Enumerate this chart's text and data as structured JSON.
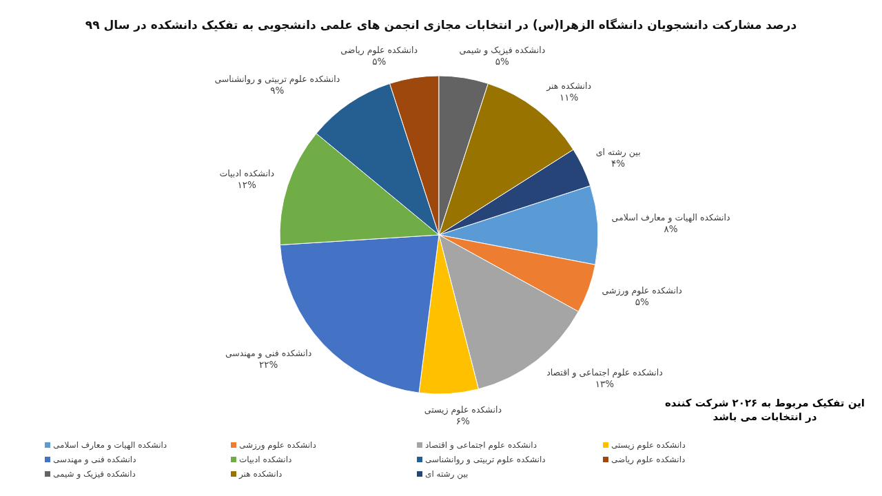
{
  "chart_data": {
    "type": "pie",
    "title": "درصد مشارکت دانشجویان دانشگاه الزهرا(س) در انتخابات مجازی انجمن های علمی دانشجویی به تفکیک دانشکده در سال ۹۹",
    "categories": [
      "دانشکده الهیات و معارف اسلامی",
      "دانشکده علوم ورزشی",
      "دانشکده علوم اجتماعی و اقتصاد",
      "دانشکده علوم زیستی",
      "دانشکده فنی و مهندسی",
      "دانشکده ادبیات",
      "دانشکده علوم تربیتی و روانشناسی",
      "دانشکده علوم ریاضی",
      "دانشکده فیزیک و شیمی",
      "دانشکده هنر",
      "بین رشته ای"
    ],
    "values": [
      8,
      5,
      13,
      6,
      22,
      12,
      9,
      5,
      5,
      11,
      4
    ],
    "value_labels": [
      "۸%",
      "۵%",
      "۱۳%",
      "۶%",
      "۲۲%",
      "۱۲%",
      "۹%",
      "۵%",
      "۵%",
      "۱۱%",
      "۴%"
    ],
    "colors": [
      "#5b9bd5",
      "#ed7d31",
      "#a5a5a5",
      "#ffc000",
      "#4472c4",
      "#70ad47",
      "#255e91",
      "#9e480e",
      "#636363",
      "#997300",
      "#264478"
    ],
    "legend": "bottom",
    "annotations": [
      "این تفکیک مربوط به ۲۰۲۶ شرکت کننده",
      "در انتخابات می باشد"
    ]
  }
}
